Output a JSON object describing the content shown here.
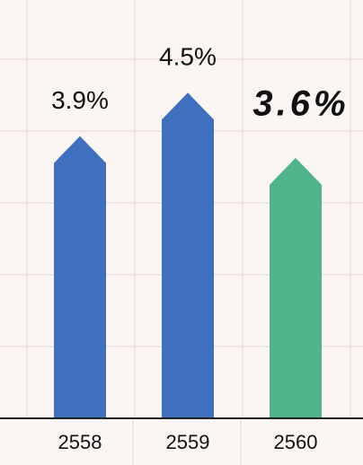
{
  "chart_data": {
    "type": "bar",
    "categories": [
      "2558",
      "2559",
      "2560"
    ],
    "values": [
      3.9,
      4.5,
      3.6
    ],
    "value_labels": [
      "3.9%",
      "4.5%",
      "3.6%"
    ],
    "colors": [
      "#3f6fbf",
      "#3f6fbf",
      "#4fb48a"
    ]
  }
}
